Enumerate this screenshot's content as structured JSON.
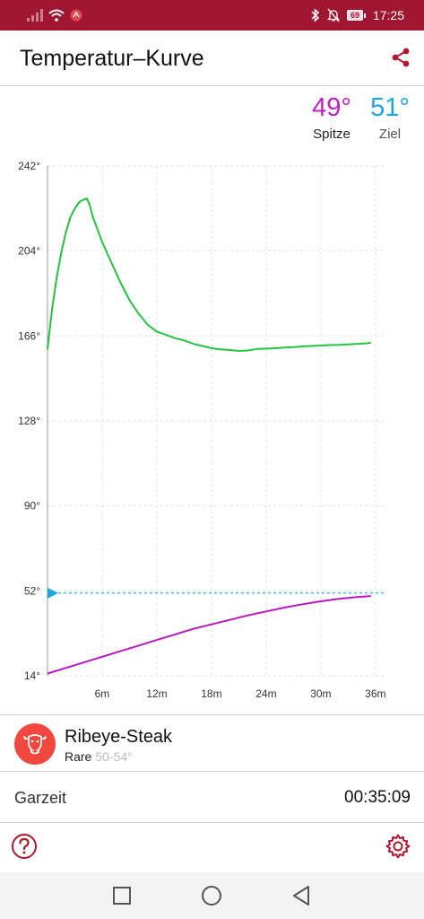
{
  "status_bar": {
    "battery": "69",
    "time": "17:25"
  },
  "header": {
    "title": "Temperatur–Kurve"
  },
  "readouts": {
    "peak": {
      "value": "49°",
      "label": "Spitze"
    },
    "target": {
      "value": "51°",
      "label": "Ziel"
    }
  },
  "chart_data": {
    "type": "line",
    "xlabel": "",
    "ylabel": "",
    "xlim": [
      0,
      37
    ],
    "ylim": [
      14,
      242
    ],
    "y_ticks": [
      {
        "value": 14,
        "label": "14°"
      },
      {
        "value": 52,
        "label": "52°"
      },
      {
        "value": 90,
        "label": "90°"
      },
      {
        "value": 128,
        "label": "128°"
      },
      {
        "value": 166,
        "label": "166°"
      },
      {
        "value": 204,
        "label": "204°"
      },
      {
        "value": 242,
        "label": "242°"
      }
    ],
    "x_ticks": [
      {
        "value": 6,
        "label": "6m"
      },
      {
        "value": 12,
        "label": "12m"
      },
      {
        "value": 18,
        "label": "18m"
      },
      {
        "value": 24,
        "label": "24m"
      },
      {
        "value": 30,
        "label": "30m"
      },
      {
        "value": 36,
        "label": "36m"
      }
    ],
    "grid": true,
    "target_line": {
      "value": 51,
      "color": "#1ea6e3"
    },
    "series": [
      {
        "color": "#22c440",
        "points": [
          [
            0,
            160
          ],
          [
            0.5,
            178
          ],
          [
            1,
            192
          ],
          [
            1.5,
            203
          ],
          [
            2,
            212
          ],
          [
            2.5,
            219
          ],
          [
            3,
            223
          ],
          [
            3.5,
            226
          ],
          [
            4,
            227
          ],
          [
            4.3,
            227.5
          ],
          [
            4.6,
            225
          ],
          [
            5,
            219
          ],
          [
            6,
            208
          ],
          [
            7,
            199
          ],
          [
            8,
            190
          ],
          [
            9,
            182
          ],
          [
            10,
            176
          ],
          [
            11,
            171
          ],
          [
            12,
            168
          ],
          [
            13,
            166.5
          ],
          [
            14,
            165
          ],
          [
            15,
            164
          ],
          [
            16,
            162.5
          ],
          [
            17,
            161.5
          ],
          [
            18,
            160.5
          ],
          [
            19,
            160
          ],
          [
            20,
            159.7
          ],
          [
            21,
            159.3
          ],
          [
            22,
            159.5
          ],
          [
            23,
            160.2
          ],
          [
            24,
            160.3
          ],
          [
            25,
            160.5
          ],
          [
            26,
            160.8
          ],
          [
            27,
            161
          ],
          [
            28,
            161.3
          ],
          [
            29,
            161.5
          ],
          [
            30,
            161.7
          ],
          [
            31,
            161.9
          ],
          [
            32,
            162
          ],
          [
            33,
            162.2
          ],
          [
            34,
            162.5
          ],
          [
            35,
            162.7
          ],
          [
            35.5,
            163
          ]
        ]
      },
      {
        "color": "#b818c0",
        "points": [
          [
            0,
            15
          ],
          [
            2,
            17.5
          ],
          [
            4,
            20
          ],
          [
            6,
            22.5
          ],
          [
            8,
            25
          ],
          [
            10,
            27.5
          ],
          [
            12,
            30
          ],
          [
            14,
            32.5
          ],
          [
            16,
            35
          ],
          [
            18,
            37
          ],
          [
            20,
            39
          ],
          [
            22,
            41
          ],
          [
            24,
            42.8
          ],
          [
            26,
            44.5
          ],
          [
            28,
            46
          ],
          [
            30,
            47.3
          ],
          [
            32,
            48.4
          ],
          [
            34,
            49.2
          ],
          [
            35.5,
            49.7
          ]
        ]
      }
    ]
  },
  "steak": {
    "name": "Ribeye-Steak",
    "doneness": "Rare",
    "range": "50-54°"
  },
  "cook_time": {
    "label": "Garzeit",
    "value": "00:35:09"
  }
}
